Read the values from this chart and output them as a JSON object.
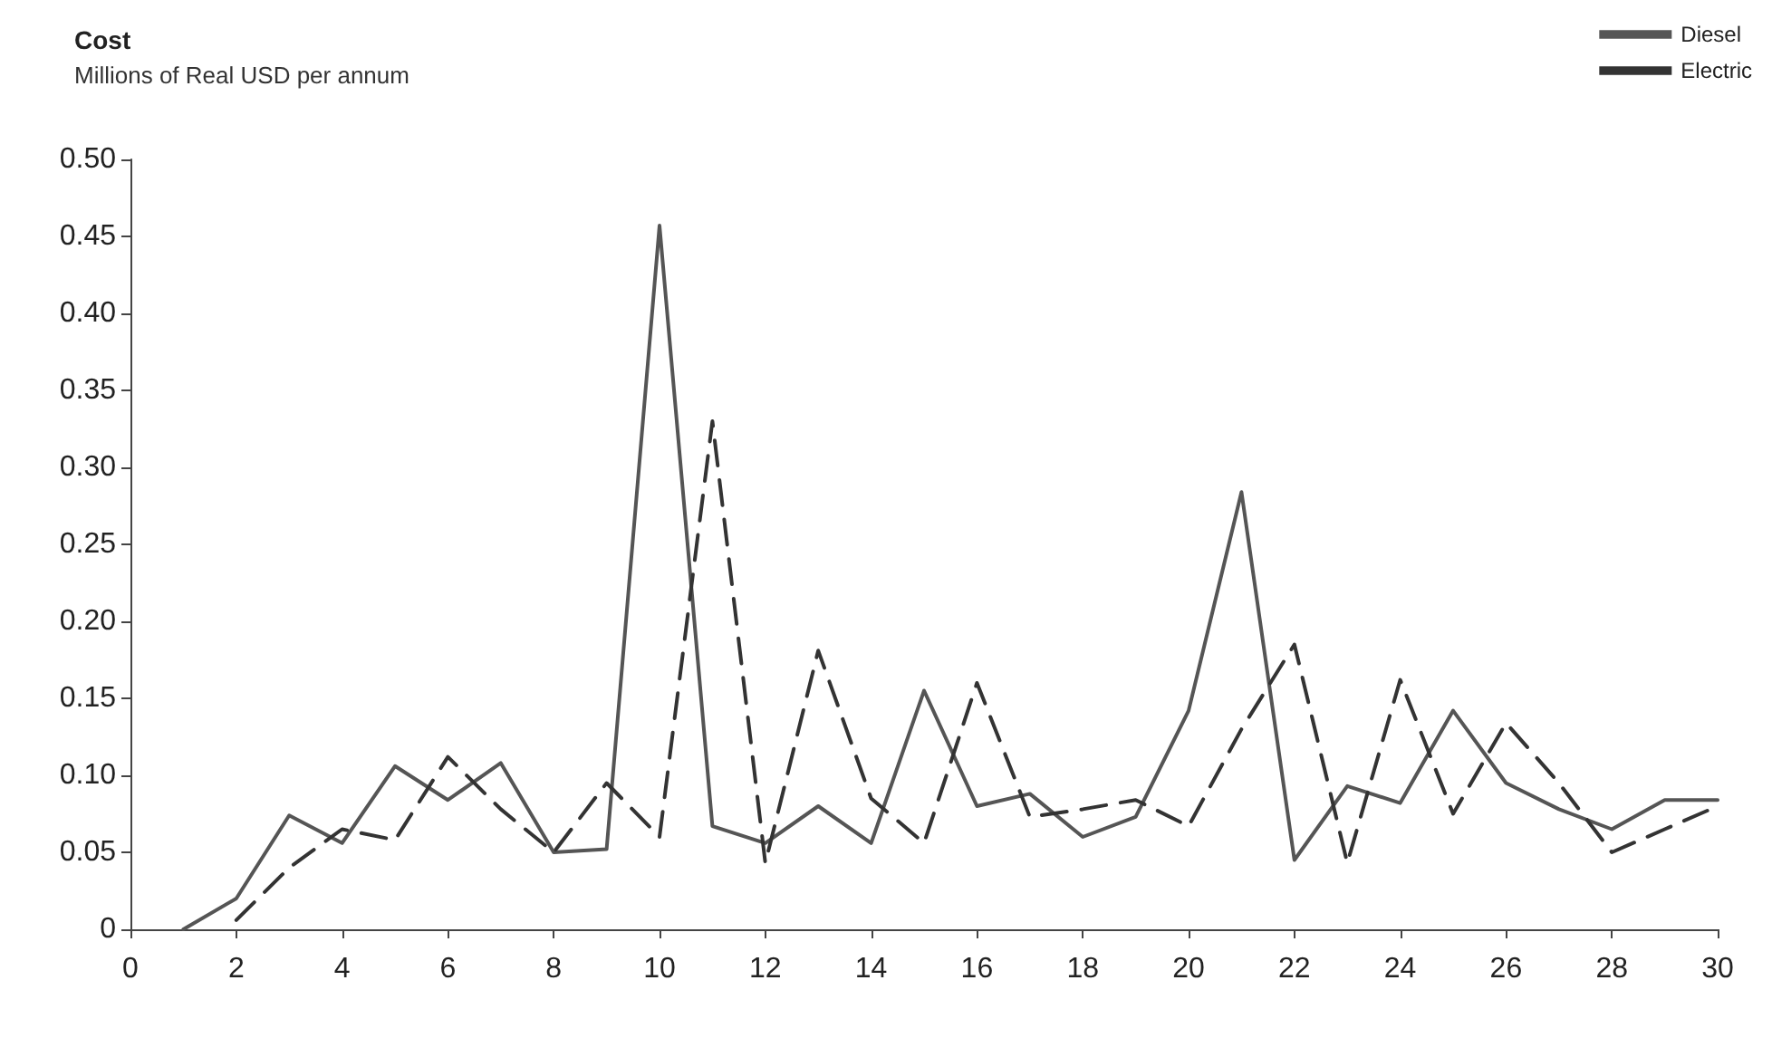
{
  "chart_data": {
    "type": "line",
    "title": "Cost",
    "subtitle": "Millions of Real USD per annum",
    "x": [
      1,
      2,
      3,
      4,
      5,
      6,
      7,
      8,
      9,
      10,
      11,
      12,
      13,
      14,
      15,
      16,
      17,
      18,
      19,
      20,
      21,
      22,
      23,
      24,
      25,
      26,
      27,
      28,
      29,
      30
    ],
    "series": [
      {
        "name": "Diesel",
        "color": "#555555",
        "line_style": "solid",
        "values": [
          0,
          0.02,
          0.074,
          0.056,
          0.106,
          0.084,
          0.108,
          0.05,
          0.052,
          0.457,
          0.067,
          0.056,
          0.08,
          0.056,
          0.155,
          0.08,
          0.088,
          0.06,
          0.073,
          0.142,
          0.284,
          0.045,
          0.093,
          0.082,
          0.142,
          0.095,
          0.078,
          0.065,
          0.084,
          0.084
        ]
      },
      {
        "name": "Electric",
        "color": "#333333",
        "line_style": "dashed",
        "x": [
          2,
          3,
          4,
          5,
          6,
          7,
          8,
          9,
          10,
          11,
          12,
          13,
          14,
          15,
          16,
          17,
          18,
          19,
          20,
          21,
          22,
          23,
          24,
          25,
          26,
          27,
          28,
          29,
          30
        ],
        "values": [
          0.006,
          0.04,
          0.065,
          0.058,
          0.112,
          0.078,
          0.05,
          0.095,
          0.06,
          0.33,
          0.043,
          0.181,
          0.085,
          0.056,
          0.16,
          0.073,
          0.078,
          0.084,
          0.067,
          0.13,
          0.185,
          0.043,
          0.162,
          0.075,
          0.134,
          0.095,
          0.05,
          0.065,
          0.08
        ]
      }
    ],
    "xlim": [
      0,
      30
    ],
    "xticks": [
      0,
      2,
      4,
      6,
      8,
      10,
      12,
      14,
      16,
      18,
      20,
      22,
      24,
      26,
      28,
      30
    ],
    "ylim": [
      0,
      0.5
    ],
    "yticks": [
      0,
      {
        "value": 0.05,
        "label": "0.05"
      },
      {
        "value": 0.1,
        "label": "0.10"
      },
      {
        "value": 0.15,
        "label": "0.15"
      },
      {
        "value": 0.2,
        "label": "0.20"
      },
      {
        "value": 0.25,
        "label": "0.25"
      },
      {
        "value": 0.3,
        "label": "0.30"
      },
      {
        "value": 0.35,
        "label": "0.35"
      },
      {
        "value": 0.4,
        "label": "0.40"
      },
      {
        "value": 0.45,
        "label": "0.45"
      },
      {
        "value": 0.5,
        "label": "0.50"
      }
    ],
    "grid": false,
    "legend": "top right",
    "marker": "none"
  }
}
